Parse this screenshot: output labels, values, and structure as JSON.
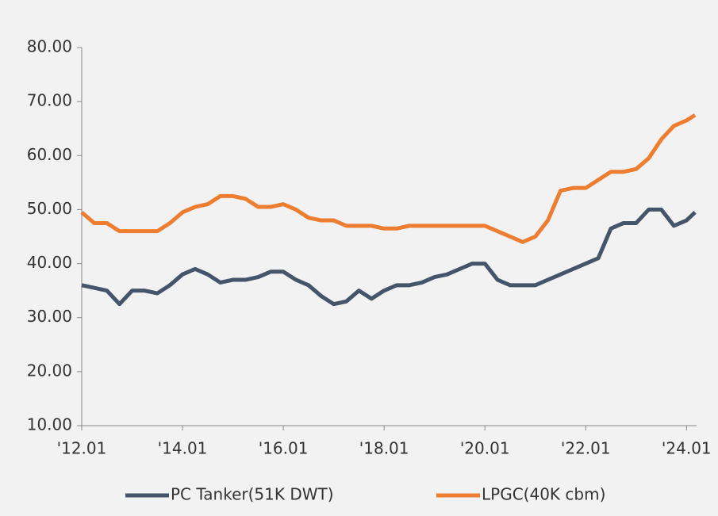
{
  "chart_data": {
    "type": "line",
    "x": [
      2012,
      2012.25,
      2012.5,
      2012.75,
      2013,
      2013.25,
      2013.5,
      2013.75,
      2014,
      2014.25,
      2014.5,
      2014.75,
      2015,
      2015.25,
      2015.5,
      2015.75,
      2016,
      2016.25,
      2016.5,
      2016.75,
      2017,
      2017.25,
      2017.5,
      2017.75,
      2018,
      2018.25,
      2018.5,
      2018.75,
      2019,
      2019.25,
      2019.5,
      2019.75,
      2020,
      2020.25,
      2020.5,
      2020.75,
      2021,
      2021.25,
      2021.5,
      2021.75,
      2022,
      2022.25,
      2022.5,
      2022.75,
      2023,
      2023.25,
      2023.5,
      2023.75,
      2024,
      2024.17
    ],
    "series": [
      {
        "name": "PC Tanker(51K DWT)",
        "color": "#44546a",
        "values": [
          36,
          35.5,
          35,
          32.5,
          35,
          35,
          34.5,
          36,
          38,
          39,
          38,
          36.5,
          37,
          37,
          37.5,
          38.5,
          38.5,
          37,
          36,
          34,
          32.5,
          33,
          35,
          33.5,
          35,
          36,
          36,
          36.5,
          37.5,
          38,
          39,
          40,
          40,
          37,
          36,
          36,
          36,
          37,
          38,
          39,
          40,
          41,
          46.5,
          47.5,
          47.5,
          50,
          50,
          47,
          48,
          49.5
        ]
      },
      {
        "name": "LPGC(40K cbm)",
        "color": "#ed7d31",
        "values": [
          49.5,
          47.5,
          47.5,
          46,
          46,
          46,
          46,
          47.5,
          49.5,
          50.5,
          51,
          52.5,
          52.5,
          52,
          50.5,
          50.5,
          51,
          50,
          48.5,
          48,
          48,
          47,
          47,
          47,
          46.5,
          46.5,
          47,
          47,
          47,
          47,
          47,
          47,
          47,
          46,
          45,
          44,
          45,
          48,
          53.5,
          54,
          54,
          55.5,
          57,
          57,
          57.5,
          59.5,
          63,
          65.5,
          66.5,
          67.5
        ]
      }
    ],
    "xlim": [
      2012,
      2024.2
    ],
    "xticks": [
      {
        "value": 2012,
        "label": "'12.01"
      },
      {
        "value": 2014,
        "label": "'14.01"
      },
      {
        "value": 2016,
        "label": "'16.01"
      },
      {
        "value": 2018,
        "label": "'18.01"
      },
      {
        "value": 2020,
        "label": "'20.01"
      },
      {
        "value": 2022,
        "label": "'22.01"
      },
      {
        "value": 2024,
        "label": "'24.01"
      }
    ],
    "ylim": [
      10,
      80
    ],
    "yticks": [
      {
        "value": 10,
        "label": "10.00"
      },
      {
        "value": 20,
        "label": "20.00"
      },
      {
        "value": 30,
        "label": "30.00"
      },
      {
        "value": 40,
        "label": "40.00"
      },
      {
        "value": 50,
        "label": "50.00"
      },
      {
        "value": 60,
        "label": "60.00"
      },
      {
        "value": 70,
        "label": "70.00"
      },
      {
        "value": 80,
        "label": "80.00"
      }
    ],
    "legend": "bottom"
  }
}
